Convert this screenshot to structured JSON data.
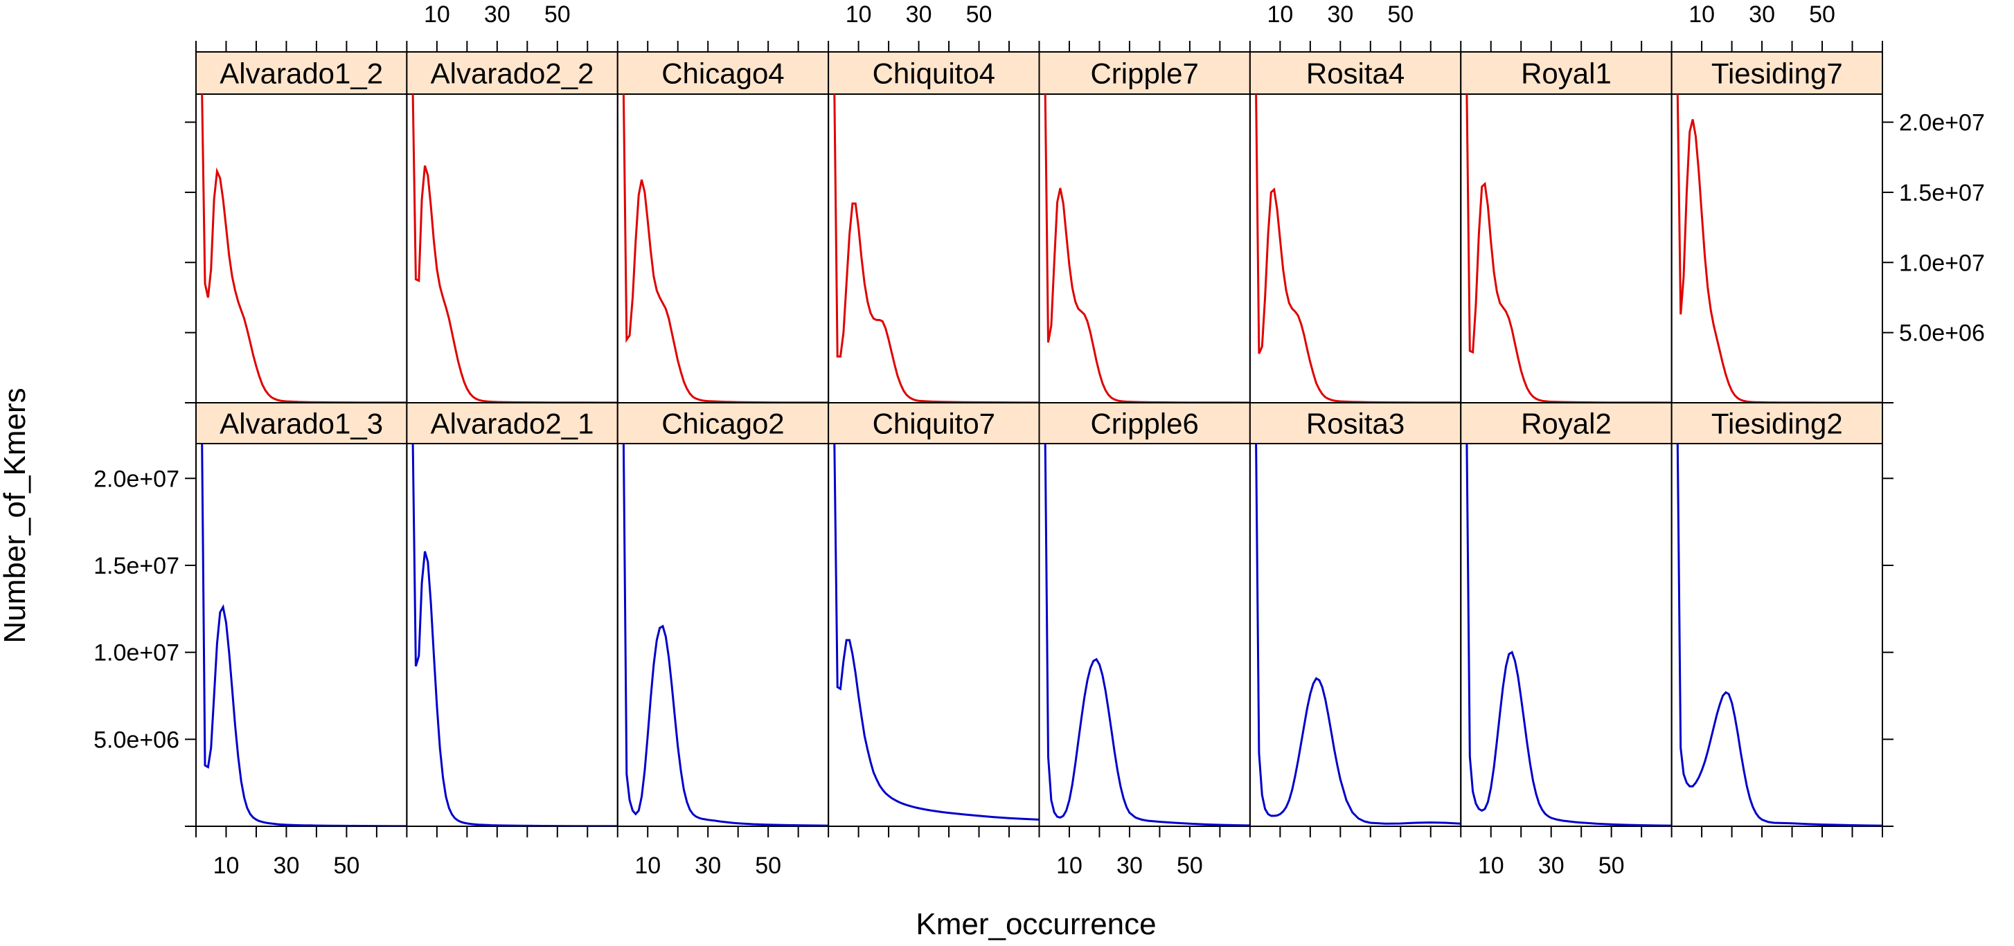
{
  "chart_data": {
    "type": "line",
    "layout": "lattice-panels",
    "xlabel": "Kmer_occurrence",
    "ylabel": "Number_of_Kmers",
    "xlim": [
      0,
      70
    ],
    "ylim": [
      0,
      22000000
    ],
    "x_ticks": [
      10,
      30,
      50
    ],
    "x_tick_labels": [
      "10",
      "30",
      "50"
    ],
    "y_ticks": [
      5000000,
      10000000,
      15000000,
      20000000
    ],
    "y_tick_labels": [
      "5.0e+06",
      "1.0e+07",
      "1.5e+07",
      "2.0e+07"
    ],
    "colors": {
      "top_row": "#e00000",
      "bottom_row": "#0000cc",
      "strip": "#ffe5cc"
    },
    "x": [
      2,
      3,
      4,
      5,
      6,
      7,
      8,
      9,
      10,
      11,
      12,
      13,
      14,
      15,
      16,
      17,
      18,
      19,
      20,
      21,
      22,
      23,
      24,
      25,
      26,
      27,
      28,
      29,
      30,
      32,
      34,
      36,
      38,
      40,
      45,
      50,
      55,
      60,
      65,
      70
    ],
    "panels": [
      {
        "name": "Alvarado1_2",
        "row": "top",
        "col": 1,
        "values": [
          22000000,
          8500000,
          7500000,
          9500000,
          14500000,
          16500000,
          16000000,
          14500000,
          12500000,
          10500000,
          9000000,
          8000000,
          7200000,
          6600000,
          6000000,
          5200000,
          4300000,
          3400000,
          2600000,
          1900000,
          1300000,
          900000,
          600000,
          400000,
          280000,
          200000,
          150000,
          120000,
          100000,
          80000,
          60000,
          50000,
          40000,
          35000,
          25000,
          20000,
          15000,
          12000,
          10000,
          8000
        ]
      },
      {
        "name": "Alvarado2_2",
        "row": "top",
        "col": 2,
        "values": [
          22000000,
          8800000,
          8700000,
          14500000,
          16900000,
          16200000,
          14000000,
          11500000,
          9500000,
          8300000,
          7500000,
          6800000,
          6000000,
          5000000,
          4000000,
          3000000,
          2200000,
          1500000,
          1000000,
          650000,
          420000,
          280000,
          190000,
          140000,
          110000,
          90000,
          75000,
          65000,
          55000,
          45000,
          38000,
          32000,
          28000,
          25000,
          18000,
          14000,
          11000,
          9000,
          7000,
          6000
        ]
      },
      {
        "name": "Chicago4",
        "row": "top",
        "col": 3,
        "values": [
          22000000,
          4500000,
          4800000,
          7500000,
          11500000,
          14800000,
          15900000,
          15000000,
          13000000,
          10800000,
          9000000,
          8000000,
          7500000,
          7100000,
          6700000,
          6000000,
          5000000,
          4000000,
          3000000,
          2200000,
          1500000,
          1000000,
          650000,
          420000,
          300000,
          220000,
          170000,
          140000,
          120000,
          100000,
          80000,
          65000,
          55000,
          45000,
          30000,
          22000,
          17000,
          13000,
          10000,
          8000
        ]
      },
      {
        "name": "Chiquito4",
        "row": "top",
        "col": 4,
        "values": [
          22000000,
          3300000,
          3300000,
          5000000,
          8500000,
          12000000,
          14200000,
          14200000,
          12500000,
          10300000,
          8500000,
          7200000,
          6400000,
          6000000,
          5900000,
          5900000,
          5800000,
          5300000,
          4500000,
          3600000,
          2700000,
          1900000,
          1300000,
          850000,
          550000,
          370000,
          250000,
          180000,
          140000,
          110000,
          90000,
          75000,
          63000,
          53000,
          40000,
          30000,
          23000,
          18000,
          14000,
          11000
        ]
      },
      {
        "name": "Cripple7",
        "row": "top",
        "col": 5,
        "values": [
          22000000,
          4300000,
          5500000,
          10000000,
          14300000,
          15300000,
          14200000,
          12000000,
          9800000,
          8200000,
          7200000,
          6700000,
          6500000,
          6300000,
          5800000,
          5000000,
          4000000,
          3000000,
          2100000,
          1400000,
          900000,
          560000,
          350000,
          230000,
          160000,
          120000,
          95000,
          80000,
          70000,
          55000,
          45000,
          38000,
          32000,
          28000,
          20000,
          15000,
          12000,
          10000,
          8000,
          7000
        ]
      },
      {
        "name": "Rosita4",
        "row": "top",
        "col": 6,
        "values": [
          22000000,
          3500000,
          4000000,
          7500000,
          12000000,
          15000000,
          15200000,
          13800000,
          11600000,
          9500000,
          8000000,
          7100000,
          6700000,
          6500000,
          6200000,
          5600000,
          4800000,
          3800000,
          2900000,
          2100000,
          1400000,
          950000,
          620000,
          400000,
          280000,
          200000,
          150000,
          120000,
          100000,
          80000,
          65000,
          55000,
          45000,
          38000,
          27000,
          20000,
          15000,
          12000,
          10000,
          8000
        ]
      },
      {
        "name": "Royal1",
        "row": "top",
        "col": 7,
        "values": [
          22000000,
          3700000,
          3600000,
          7000000,
          12000000,
          15400000,
          15600000,
          14000000,
          11500000,
          9300000,
          7900000,
          7100000,
          6800000,
          6500000,
          6000000,
          5200000,
          4200000,
          3200000,
          2300000,
          1600000,
          1050000,
          680000,
          430000,
          280000,
          190000,
          140000,
          110000,
          90000,
          75000,
          60000,
          50000,
          42000,
          36000,
          31000,
          22000,
          17000,
          13000,
          10000,
          8000,
          7000
        ]
      },
      {
        "name": "Tiesiding7",
        "row": "top",
        "col": 8,
        "values": [
          22000000,
          6300000,
          9000000,
          15000000,
          19300000,
          20200000,
          19000000,
          16500000,
          13500000,
          10500000,
          8200000,
          6600000,
          5500000,
          4600000,
          3700000,
          2800000,
          2000000,
          1350000,
          850000,
          530000,
          320000,
          200000,
          130000,
          90000,
          65000,
          50000,
          40000,
          33000,
          28000,
          22000,
          18000,
          15000,
          13000,
          11000,
          8000,
          6000,
          5000,
          4000,
          3000,
          2500
        ]
      },
      {
        "name": "Alvarado1_3",
        "row": "bottom",
        "col": 1,
        "values": [
          22000000,
          3500000,
          3400000,
          4500000,
          7500000,
          10500000,
          12300000,
          12600000,
          11700000,
          10000000,
          7900000,
          5800000,
          4000000,
          2600000,
          1650000,
          1050000,
          700000,
          500000,
          380000,
          300000,
          250000,
          210000,
          180000,
          160000,
          140000,
          120000,
          105000,
          95000,
          85000,
          70000,
          60000,
          52000,
          46000,
          40000,
          30000,
          23000,
          18000,
          14000,
          11000,
          9000
        ]
      },
      {
        "name": "Alvarado2_1",
        "row": "bottom",
        "col": 2,
        "values": [
          22000000,
          9200000,
          9800000,
          14000000,
          15800000,
          15200000,
          12800000,
          9800000,
          6900000,
          4500000,
          2800000,
          1700000,
          1050000,
          680000,
          460000,
          330000,
          250000,
          200000,
          165000,
          140000,
          120000,
          105000,
          92000,
          82000,
          74000,
          67000,
          61000,
          56000,
          52000,
          45000,
          39000,
          34000,
          30000,
          27000,
          20000,
          15000,
          12000,
          9500,
          7500,
          6000
        ]
      },
      {
        "name": "Chicago2",
        "row": "bottom",
        "col": 3,
        "values": [
          22000000,
          3000000,
          1500000,
          900000,
          700000,
          900000,
          1700000,
          3200000,
          5200000,
          7400000,
          9300000,
          10700000,
          11400000,
          11500000,
          10900000,
          9700000,
          8100000,
          6300000,
          4600000,
          3200000,
          2100000,
          1400000,
          950000,
          700000,
          560000,
          480000,
          430000,
          400000,
          370000,
          330000,
          280000,
          240000,
          200000,
          170000,
          120000,
          90000,
          70000,
          55000,
          45000,
          35000
        ]
      },
      {
        "name": "Chiquito7",
        "row": "bottom",
        "col": 4,
        "values": [
          22000000,
          8000000,
          7900000,
          9500000,
          10700000,
          10700000,
          9900000,
          8800000,
          7500000,
          6300000,
          5200000,
          4400000,
          3700000,
          3100000,
          2700000,
          2350000,
          2100000,
          1900000,
          1750000,
          1620000,
          1520000,
          1430000,
          1350000,
          1280000,
          1220000,
          1170000,
          1120000,
          1080000,
          1040000,
          970000,
          910000,
          860000,
          810000,
          770000,
          680000,
          600000,
          530000,
          470000,
          420000,
          380000
        ]
      },
      {
        "name": "Cripple6",
        "row": "bottom",
        "col": 5,
        "values": [
          22000000,
          4000000,
          1500000,
          800000,
          550000,
          500000,
          600000,
          900000,
          1500000,
          2400000,
          3600000,
          4900000,
          6200000,
          7400000,
          8400000,
          9100000,
          9500000,
          9600000,
          9300000,
          8700000,
          7800000,
          6700000,
          5500000,
          4300000,
          3200000,
          2300000,
          1600000,
          1100000,
          780000,
          500000,
          380000,
          320000,
          290000,
          260000,
          200000,
          150000,
          110000,
          80000,
          60000,
          45000
        ]
      },
      {
        "name": "Rosita3",
        "row": "bottom",
        "col": 6,
        "values": [
          22000000,
          4200000,
          1800000,
          1000000,
          700000,
          600000,
          600000,
          620000,
          700000,
          850000,
          1100000,
          1500000,
          2100000,
          2900000,
          3800000,
          4800000,
          5800000,
          6800000,
          7600000,
          8200000,
          8500000,
          8400000,
          8000000,
          7300000,
          6400000,
          5400000,
          4400000,
          3500000,
          2700000,
          1500000,
          800000,
          450000,
          280000,
          200000,
          150000,
          160000,
          200000,
          220000,
          200000,
          150000
        ]
      },
      {
        "name": "Royal2",
        "row": "bottom",
        "col": 7,
        "values": [
          22000000,
          4000000,
          2000000,
          1300000,
          1000000,
          900000,
          1000000,
          1400000,
          2200000,
          3400000,
          4900000,
          6500000,
          8000000,
          9200000,
          9900000,
          10000000,
          9500000,
          8600000,
          7400000,
          6100000,
          4800000,
          3600000,
          2600000,
          1850000,
          1300000,
          950000,
          720000,
          580000,
          480000,
          380000,
          320000,
          280000,
          240000,
          210000,
          150000,
          110000,
          80000,
          60000,
          45000,
          35000
        ]
      },
      {
        "name": "Tiesiding2",
        "row": "bottom",
        "col": 8,
        "values": [
          22000000,
          4500000,
          3000000,
          2500000,
          2300000,
          2300000,
          2500000,
          2800000,
          3200000,
          3700000,
          4300000,
          5000000,
          5700000,
          6400000,
          7000000,
          7500000,
          7700000,
          7600000,
          7100000,
          6300000,
          5300000,
          4200000,
          3200000,
          2300000,
          1600000,
          1100000,
          750000,
          520000,
          380000,
          250000,
          200000,
          190000,
          180000,
          170000,
          130000,
          100000,
          80000,
          60000,
          45000,
          35000
        ]
      }
    ]
  }
}
